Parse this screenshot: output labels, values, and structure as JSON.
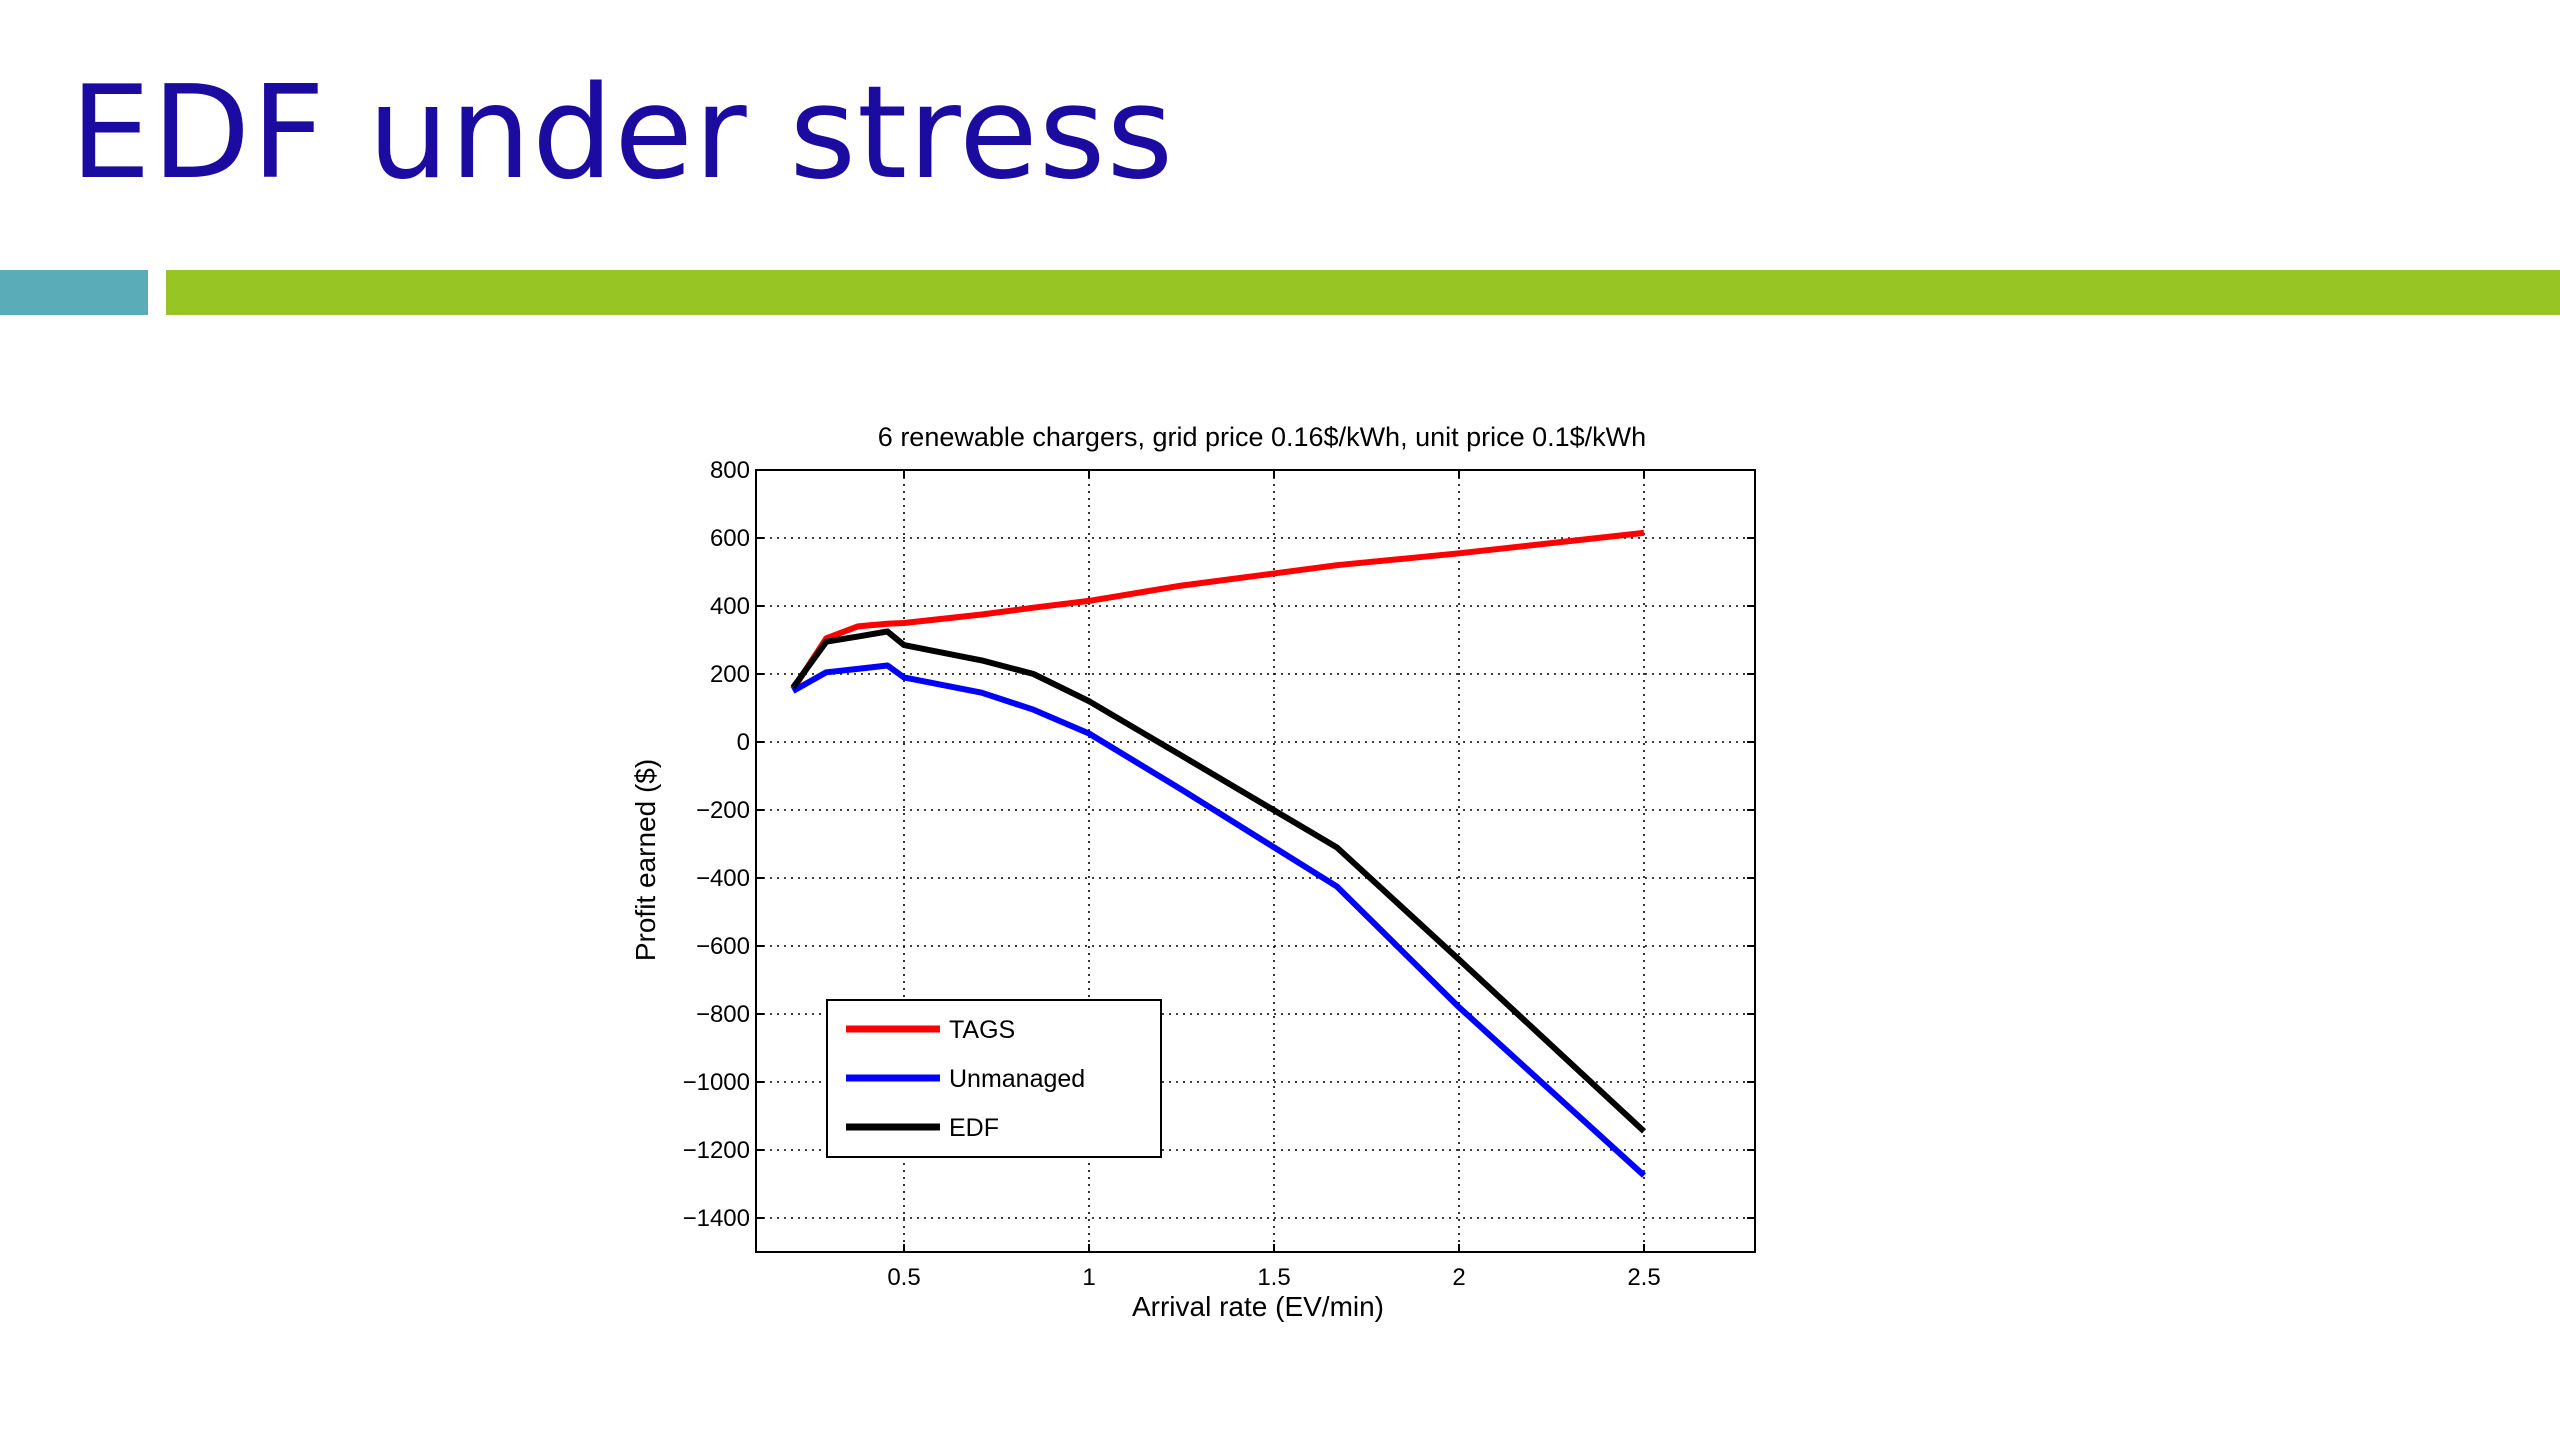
{
  "slide": {
    "title": "EDF under stress"
  },
  "colors": {
    "title": "#1c0ba0",
    "accent_left": "#5aadb8",
    "accent_right": "#96c524"
  },
  "chart_data": {
    "type": "line",
    "title": "6 renewable chargers, grid price 0.16$/kWh, unit price 0.1$/kWh",
    "xlabel": "Arrival rate (EV/min)",
    "ylabel": "Profit earned ($)",
    "xlim": [
      0.1,
      2.8
    ],
    "ylim": [
      -1500,
      800
    ],
    "xticks": [
      0.5,
      1,
      1.5,
      2,
      2.5
    ],
    "xtick_labels": [
      "0.5",
      "1",
      "1.5",
      "2",
      "2.5"
    ],
    "yticks": [
      800,
      600,
      400,
      200,
      0,
      -200,
      -400,
      -600,
      -800,
      -1000,
      -1200,
      -1400
    ],
    "ytick_labels": [
      "800",
      "600",
      "400",
      "200",
      "0",
      "−200",
      "−400",
      "−600",
      "−800",
      "−1000",
      "−1200",
      "−1400"
    ],
    "grid": true,
    "legend_position": "bottom-left",
    "series": [
      {
        "name": "TAGS",
        "color": "#ff0000",
        "x": [
          0.2,
          0.29,
          0.375,
          0.455,
          0.5,
          0.71,
          0.85,
          1.0,
          1.25,
          1.67,
          2.0,
          2.5
        ],
        "y": [
          155,
          305,
          340,
          348,
          350,
          375,
          395,
          415,
          460,
          520,
          555,
          615
        ]
      },
      {
        "name": "Unmanaged",
        "color": "#0000ff",
        "x": [
          0.2,
          0.29,
          0.375,
          0.455,
          0.5,
          0.71,
          0.85,
          1.0,
          1.25,
          1.67,
          2.0,
          2.5
        ],
        "y": [
          150,
          205,
          215,
          225,
          190,
          145,
          95,
          25,
          -140,
          -425,
          -780,
          -1275
        ]
      },
      {
        "name": "EDF",
        "color": "#000000",
        "x": [
          0.2,
          0.29,
          0.375,
          0.455,
          0.5,
          0.71,
          0.85,
          1.0,
          1.25,
          1.67,
          2.0,
          2.5
        ],
        "y": [
          160,
          295,
          310,
          325,
          285,
          240,
          200,
          120,
          -40,
          -310,
          -640,
          -1145
        ]
      }
    ]
  }
}
